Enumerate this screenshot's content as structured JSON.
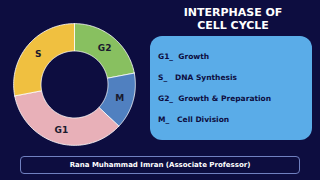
{
  "chart_data": {
    "type": "pie",
    "title": "INTERPHASE OF\nCELL CYCLE",
    "categories": [
      "G2",
      "M",
      "G1",
      "S"
    ],
    "values": [
      22,
      15,
      35,
      28
    ],
    "colors": [
      "#88c060",
      "#5080c0",
      "#e8b0b8",
      "#f0c040"
    ],
    "annotations": [
      "G1_  Growth",
      "S_   DNA Synthesis",
      "G2_  Growth & Preparation",
      "M_   Cell Division"
    ],
    "caption": "Rana Muhammad Imran (Associate Professor)"
  }
}
